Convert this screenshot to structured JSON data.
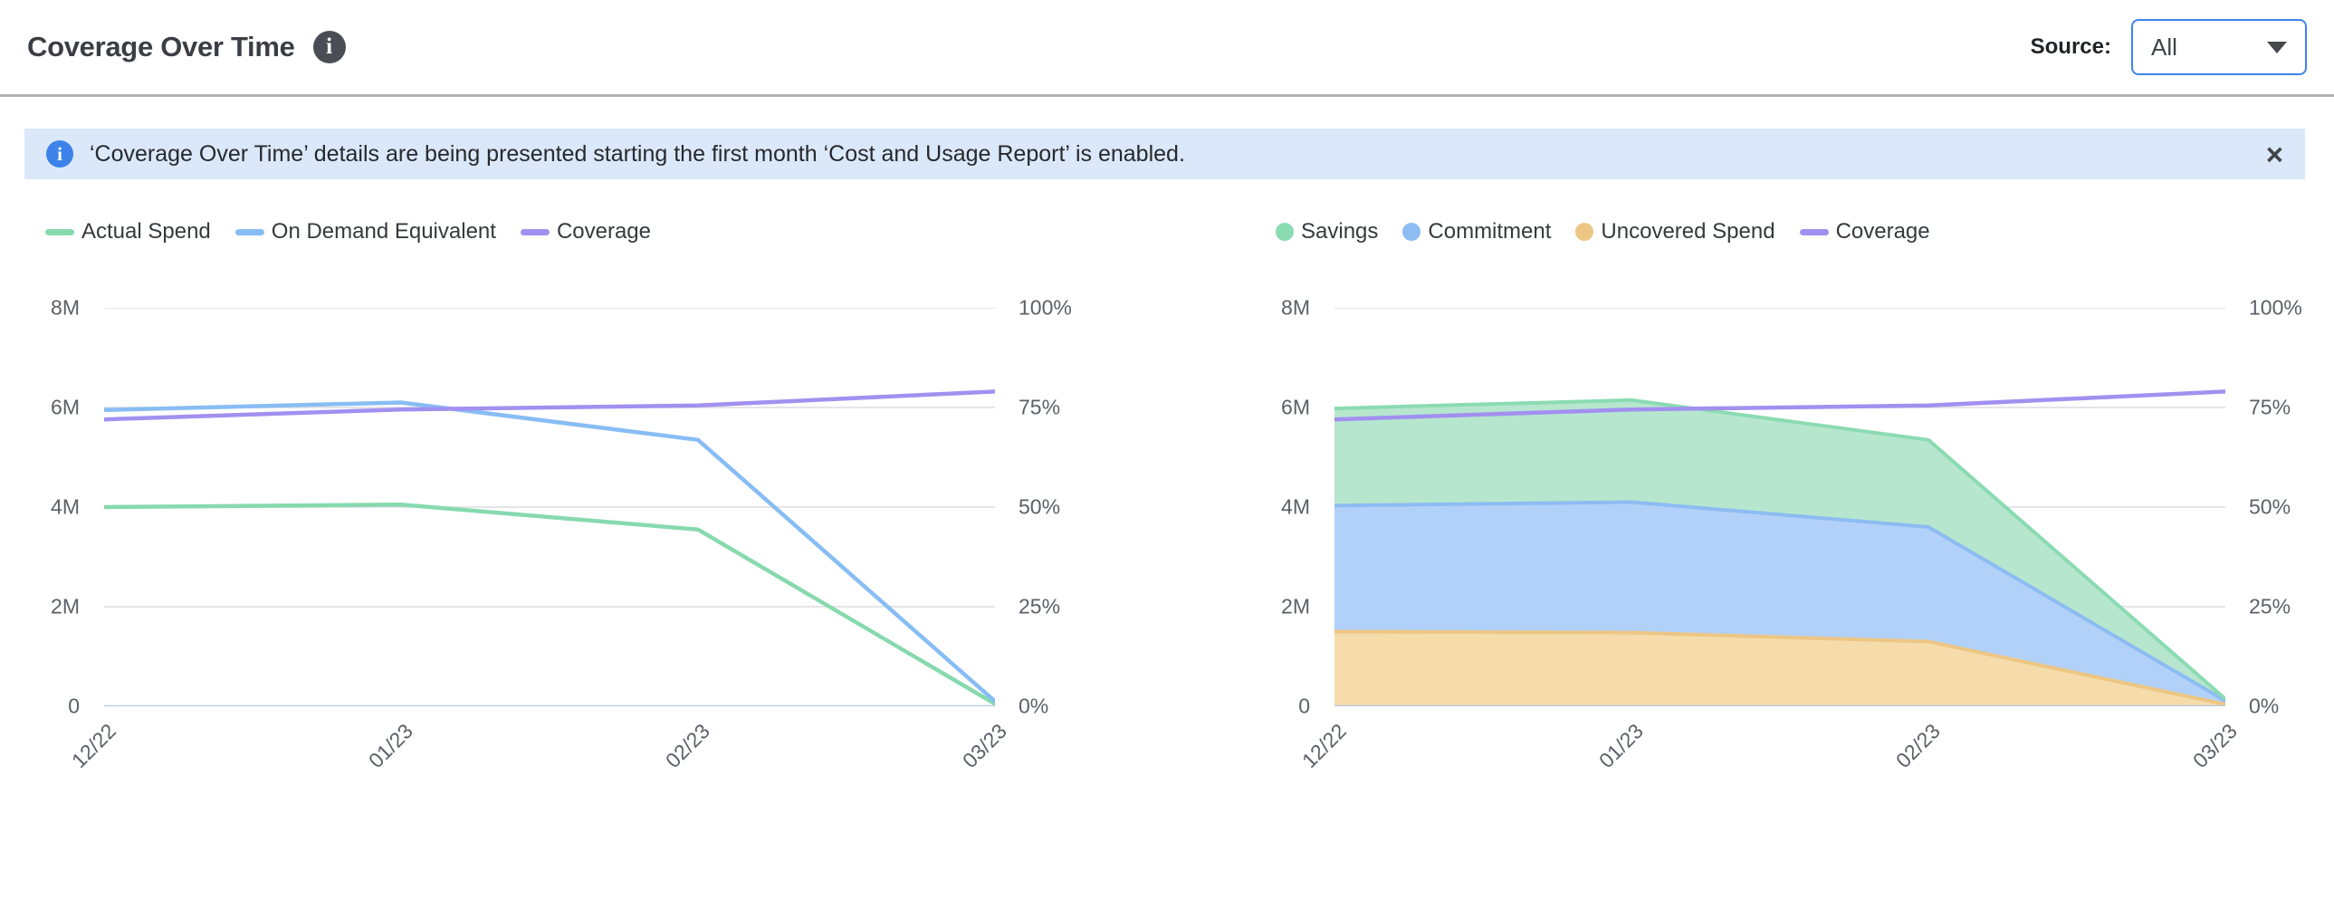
{
  "header": {
    "title": "Coverage Over Time",
    "title_info_icon": "info-icon",
    "source_label": "Source:",
    "source_value": "All"
  },
  "banner": {
    "info_icon": "info-icon",
    "text": "‘Coverage Over Time’ details are being presented starting the first month ‘Cost and Usage Report’ is enabled.",
    "close_glyph": "×"
  },
  "colors": {
    "accent_blue": "#3d85ec",
    "banner_bg": "#dbe8fa",
    "divider": "#b2b2b2",
    "gridline": "#e5e5e8",
    "zero_axis_line": "#b7c7e3",
    "axis_text": "#5c6066",
    "legend_text": "#36393d"
  },
  "chart_data": [
    {
      "type": "line",
      "name": "coverage-over-time-lines",
      "categories": [
        "12/22",
        "01/23",
        "02/23",
        "03/23"
      ],
      "left_axis": {
        "ticks": [
          "8M",
          "6M",
          "4M",
          "2M",
          "0"
        ],
        "min": 0,
        "max": 8,
        "unit": "M (spend)"
      },
      "right_axis": {
        "ticks": [
          "100%",
          "75%",
          "50%",
          "25%",
          "0%"
        ],
        "min": 0,
        "max": 100,
        "unit": "%"
      },
      "grid": true,
      "legend_position": "top-left",
      "series": [
        {
          "name": "Actual Spend",
          "type": "line",
          "axis": "left",
          "marker": "line",
          "color": "#87d9ae",
          "values": [
            4.0,
            4.05,
            3.55,
            0.05
          ]
        },
        {
          "name": "On Demand Equivalent",
          "type": "line",
          "axis": "left",
          "marker": "line",
          "color": "#88bdf4",
          "values": [
            5.95,
            6.1,
            5.35,
            0.1
          ]
        },
        {
          "name": "Coverage",
          "type": "line",
          "axis": "right",
          "marker": "line",
          "color": "#a290f0",
          "values": [
            72,
            74.5,
            75.5,
            79
          ]
        }
      ]
    },
    {
      "type": "area",
      "name": "coverage-over-time-stacked",
      "categories": [
        "12/22",
        "01/23",
        "02/23",
        "03/23"
      ],
      "left_axis": {
        "ticks": [
          "8M",
          "6M",
          "4M",
          "2M",
          "0"
        ],
        "min": 0,
        "max": 8,
        "unit": "M (spend)"
      },
      "right_axis": {
        "ticks": [
          "100%",
          "75%",
          "50%",
          "25%",
          "0%"
        ],
        "min": 0,
        "max": 100,
        "unit": "%"
      },
      "grid": true,
      "legend_position": "top-left",
      "legend_order": [
        "Savings",
        "Commitment",
        "Uncovered Spend",
        "Coverage"
      ],
      "series": [
        {
          "name": "Uncovered Spend",
          "type": "area",
          "stack": "total",
          "axis": "left",
          "marker": "circle",
          "color": "#edc684",
          "fill": "#f5dcaa",
          "values": [
            1.5,
            1.48,
            1.3,
            0.04
          ]
        },
        {
          "name": "Commitment",
          "type": "area",
          "stack": "total",
          "axis": "left",
          "marker": "circle",
          "color": "#8cbcf2",
          "fill": "#b2d1f8",
          "values": [
            2.53,
            2.62,
            2.3,
            0.07
          ]
        },
        {
          "name": "Savings",
          "type": "area",
          "stack": "total",
          "axis": "left",
          "marker": "circle",
          "color": "#8bdbb2",
          "fill": "#b7e6ce",
          "values": [
            1.95,
            2.05,
            1.75,
            0.04
          ]
        },
        {
          "name": "Coverage",
          "type": "line",
          "axis": "right",
          "marker": "line",
          "color": "#a290f0",
          "values": [
            72,
            74.5,
            75.5,
            79
          ]
        }
      ]
    }
  ]
}
